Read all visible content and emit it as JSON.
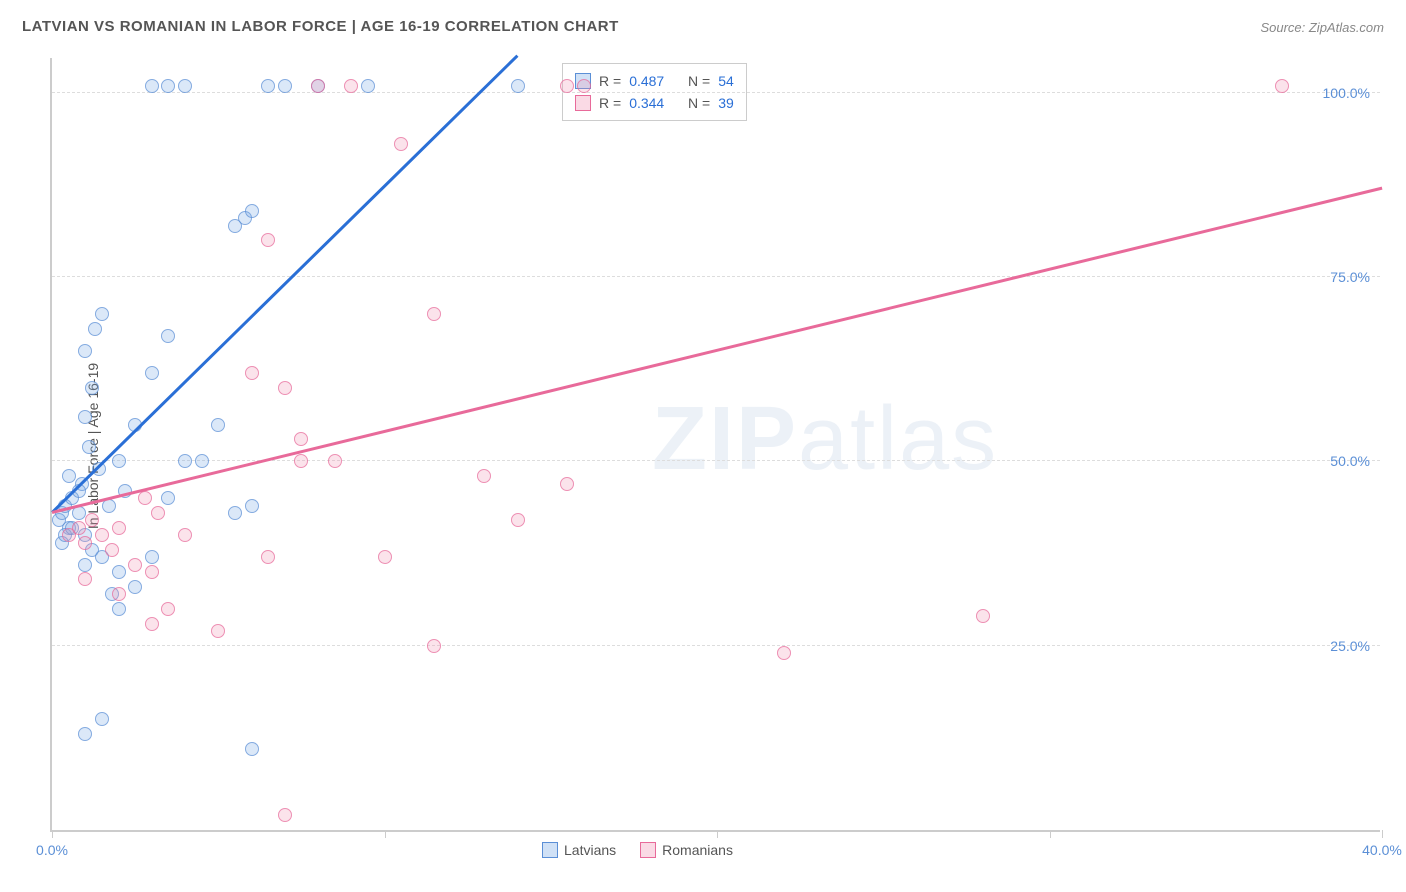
{
  "title": "LATVIAN VS ROMANIAN IN LABOR FORCE | AGE 16-19 CORRELATION CHART",
  "source_label": "Source: ",
  "source_name": "ZipAtlas.com",
  "y_axis_label": "In Labor Force | Age 16-19",
  "watermark_bold": "ZIP",
  "watermark_light": "atlas",
  "chart": {
    "type": "scatter",
    "xlim": [
      0,
      40
    ],
    "ylim": [
      0,
      105
    ],
    "x_ticks": [
      0,
      10,
      20,
      30,
      40
    ],
    "x_tick_labels": [
      "0.0%",
      "",
      "",
      "",
      "40.0%"
    ],
    "y_gridlines": [
      25,
      50,
      75,
      100
    ],
    "y_tick_labels": [
      "25.0%",
      "50.0%",
      "75.0%",
      "100.0%"
    ],
    "background_color": "#ffffff",
    "grid_color": "#dddddd",
    "axis_color": "#cccccc",
    "tick_label_color": "#5b8fd6",
    "marker_radius": 7,
    "series": [
      {
        "name": "Latvians",
        "fill": "rgba(120,170,230,0.35)",
        "stroke": "#5b8fd6",
        "reg_line_color": "#2a6fd6",
        "R": "0.487",
        "N": "54",
        "regression": {
          "x1": 0,
          "y1": 43,
          "x2": 14,
          "y2": 105
        },
        "points": [
          [
            0.2,
            42
          ],
          [
            0.3,
            43
          ],
          [
            0.4,
            44
          ],
          [
            0.5,
            41
          ],
          [
            0.6,
            45
          ],
          [
            0.8,
            43
          ],
          [
            0.5,
            48
          ],
          [
            0.9,
            47
          ],
          [
            1.0,
            40
          ],
          [
            1.2,
            38
          ],
          [
            1.0,
            36
          ],
          [
            1.5,
            37
          ],
          [
            1.8,
            32
          ],
          [
            1.0,
            56
          ],
          [
            1.2,
            60
          ],
          [
            1.0,
            65
          ],
          [
            1.3,
            68
          ],
          [
            1.5,
            70
          ],
          [
            2.0,
            50
          ],
          [
            2.2,
            46
          ],
          [
            2.0,
            35
          ],
          [
            2.5,
            33
          ],
          [
            3.0,
            37
          ],
          [
            3.5,
            45
          ],
          [
            2.5,
            55
          ],
          [
            3.0,
            62
          ],
          [
            3.5,
            67
          ],
          [
            4.0,
            50
          ],
          [
            4.5,
            50
          ],
          [
            5.0,
            55
          ],
          [
            5.5,
            43
          ],
          [
            6.0,
            44
          ],
          [
            3.0,
            101
          ],
          [
            3.5,
            101
          ],
          [
            4.0,
            101
          ],
          [
            6.5,
            101
          ],
          [
            7.0,
            101
          ],
          [
            8.0,
            101
          ],
          [
            9.5,
            101
          ],
          [
            14.0,
            101
          ],
          [
            5.5,
            82
          ],
          [
            5.8,
            83
          ],
          [
            6.0,
            84
          ],
          [
            1.0,
            13
          ],
          [
            1.5,
            15
          ],
          [
            2.0,
            30
          ],
          [
            6.0,
            11
          ],
          [
            0.3,
            39
          ],
          [
            0.4,
            40
          ],
          [
            0.6,
            41
          ],
          [
            0.8,
            46
          ],
          [
            1.1,
            52
          ],
          [
            1.4,
            49
          ],
          [
            1.7,
            44
          ]
        ]
      },
      {
        "name": "Romanians",
        "fill": "rgba(240,150,180,0.35)",
        "stroke": "#e86a9a",
        "reg_line_color": "#e86a9a",
        "R": "0.344",
        "N": "39",
        "regression": {
          "x1": 0,
          "y1": 43,
          "x2": 40,
          "y2": 87
        },
        "points": [
          [
            0.5,
            40
          ],
          [
            0.8,
            41
          ],
          [
            1.0,
            39
          ],
          [
            1.2,
            42
          ],
          [
            1.5,
            40
          ],
          [
            1.8,
            38
          ],
          [
            2.0,
            41
          ],
          [
            2.5,
            36
          ],
          [
            3.0,
            35
          ],
          [
            3.0,
            28
          ],
          [
            3.5,
            30
          ],
          [
            5.0,
            27
          ],
          [
            6.5,
            37
          ],
          [
            7.0,
            2
          ],
          [
            7.5,
            50
          ],
          [
            8.0,
            101
          ],
          [
            9.0,
            101
          ],
          [
            15.5,
            101
          ],
          [
            16.0,
            101
          ],
          [
            37.0,
            101
          ],
          [
            6.5,
            80
          ],
          [
            6.0,
            62
          ],
          [
            7.0,
            60
          ],
          [
            7.5,
            53
          ],
          [
            8.5,
            50
          ],
          [
            10.0,
            37
          ],
          [
            11.5,
            25
          ],
          [
            13.0,
            48
          ],
          [
            14.0,
            42
          ],
          [
            15.5,
            47
          ],
          [
            22.0,
            24
          ],
          [
            28.0,
            29
          ],
          [
            10.5,
            93
          ],
          [
            11.5,
            70
          ],
          [
            2.8,
            45
          ],
          [
            3.2,
            43
          ],
          [
            4.0,
            40
          ],
          [
            1.0,
            34
          ],
          [
            2.0,
            32
          ]
        ]
      }
    ]
  },
  "stats_legend": {
    "r_label": "R =",
    "n_label": "N ="
  },
  "bottom_legend": {
    "items": [
      "Latvians",
      "Romanians"
    ]
  }
}
